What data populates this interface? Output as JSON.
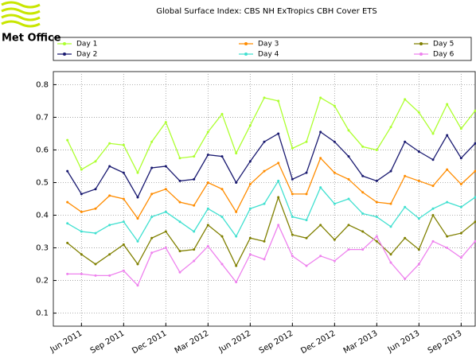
{
  "logo": "Met Office",
  "chart_data": {
    "type": "line",
    "title": "Global Surface Index: CBS NH ExTropics CBH Cover ETS",
    "x": [
      "2011-05",
      "2011-06",
      "2011-07",
      "2011-08",
      "2011-09",
      "2011-10",
      "2011-11",
      "2011-12",
      "2012-01",
      "2012-02",
      "2012-03",
      "2012-04",
      "2012-05",
      "2012-06",
      "2012-07",
      "2012-08",
      "2012-09",
      "2012-10",
      "2012-11",
      "2012-12",
      "2013-01",
      "2013-02",
      "2013-03",
      "2013-04",
      "2013-05",
      "2013-06",
      "2013-07",
      "2013-08",
      "2013-09",
      "2013-10"
    ],
    "xlim": [
      "2011-04",
      "2013-10"
    ],
    "xticks": [
      {
        "value": "2011-06",
        "label": "Jun 2011"
      },
      {
        "value": "2011-09",
        "label": "Sep 2011"
      },
      {
        "value": "2011-12",
        "label": "Dec 2011"
      },
      {
        "value": "2012-03",
        "label": "Mar 2012"
      },
      {
        "value": "2012-06",
        "label": "Jun 2012"
      },
      {
        "value": "2012-09",
        "label": "Sep 2012"
      },
      {
        "value": "2012-12",
        "label": "Dec 2012"
      },
      {
        "value": "2013-03",
        "label": "Mar 2013"
      },
      {
        "value": "2013-06",
        "label": "Jun 2013"
      },
      {
        "value": "2013-09",
        "label": "Sep 2013"
      }
    ],
    "ylim": [
      0.06,
      0.84
    ],
    "yticks": [
      0.1,
      0.2,
      0.3,
      0.4,
      0.5,
      0.6,
      0.7,
      0.8
    ],
    "grid": true,
    "series": [
      {
        "name": "Day 1",
        "color": "#adff2f",
        "values": [
          0.63,
          0.54,
          0.565,
          0.62,
          0.615,
          0.53,
          0.625,
          0.685,
          0.575,
          0.58,
          0.655,
          0.71,
          0.59,
          0.675,
          0.76,
          0.75,
          0.605,
          0.625,
          0.76,
          0.735,
          0.66,
          0.61,
          0.6,
          0.67,
          0.755,
          0.715,
          0.65,
          0.74,
          0.665,
          0.72
        ]
      },
      {
        "name": "Day 2",
        "color": "#191970",
        "values": [
          0.535,
          0.465,
          0.48,
          0.55,
          0.53,
          0.455,
          0.545,
          0.55,
          0.505,
          0.51,
          0.585,
          0.58,
          0.5,
          0.565,
          0.625,
          0.65,
          0.51,
          0.53,
          0.655,
          0.625,
          0.58,
          0.52,
          0.505,
          0.535,
          0.625,
          0.595,
          0.57,
          0.645,
          0.575,
          0.62
        ]
      },
      {
        "name": "Day 3",
        "color": "#ff8c00",
        "values": [
          0.44,
          0.41,
          0.42,
          0.46,
          0.45,
          0.39,
          0.465,
          0.48,
          0.44,
          0.43,
          0.5,
          0.48,
          0.41,
          0.495,
          0.535,
          0.56,
          0.465,
          0.465,
          0.575,
          0.53,
          0.51,
          0.47,
          0.44,
          0.435,
          0.52,
          0.505,
          0.49,
          0.54,
          0.495,
          0.535
        ]
      },
      {
        "name": "Day 4",
        "color": "#40e0d0",
        "values": [
          0.375,
          0.35,
          0.345,
          0.37,
          0.38,
          0.32,
          0.395,
          0.41,
          0.38,
          0.35,
          0.42,
          0.395,
          0.335,
          0.42,
          0.435,
          0.505,
          0.395,
          0.385,
          0.485,
          0.435,
          0.45,
          0.405,
          0.395,
          0.365,
          0.425,
          0.39,
          0.42,
          0.44,
          0.425,
          0.455
        ]
      },
      {
        "name": "Day 5",
        "color": "#808000",
        "values": [
          0.315,
          0.28,
          0.25,
          0.28,
          0.31,
          0.25,
          0.33,
          0.35,
          0.29,
          0.295,
          0.37,
          0.335,
          0.245,
          0.33,
          0.32,
          0.455,
          0.34,
          0.33,
          0.37,
          0.325,
          0.37,
          0.35,
          0.32,
          0.28,
          0.33,
          0.295,
          0.4,
          0.335,
          0.345,
          0.38
        ]
      },
      {
        "name": "Day 6",
        "color": "#ee82ee",
        "values": [
          0.22,
          0.22,
          0.215,
          0.215,
          0.23,
          0.185,
          0.285,
          0.3,
          0.225,
          0.26,
          0.305,
          0.25,
          0.195,
          0.28,
          0.265,
          0.37,
          0.275,
          0.245,
          0.275,
          0.26,
          0.295,
          0.295,
          0.335,
          0.255,
          0.205,
          0.25,
          0.32,
          0.3,
          0.27,
          0.32
        ]
      }
    ]
  }
}
